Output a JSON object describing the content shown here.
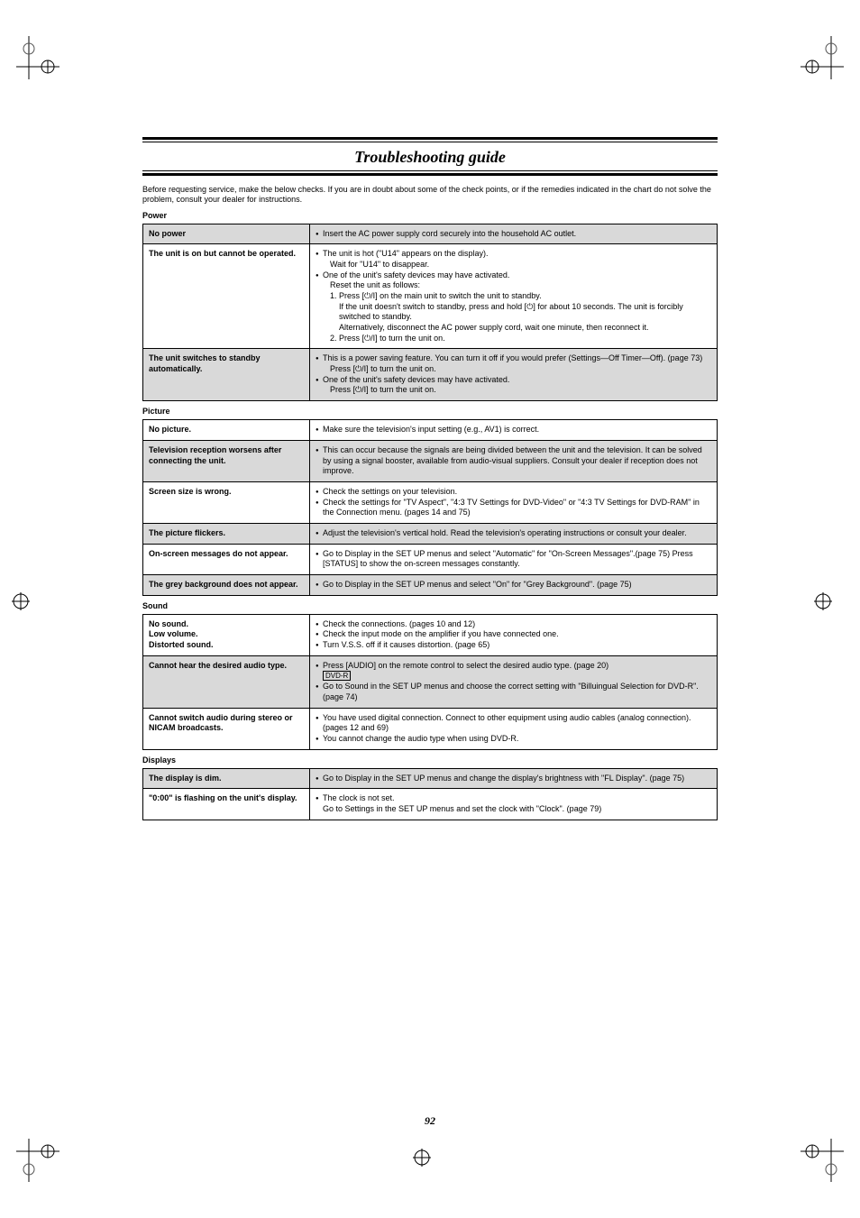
{
  "page": {
    "title": "Troubleshooting guide",
    "intro": "Before requesting service, make the below checks. If you are in doubt about some of the check points, or if the remedies indicated in the chart do not solve the problem, consult your dealer for instructions.",
    "page_number": "92"
  },
  "power_sym": "⏻",
  "sections": [
    {
      "label": "Power",
      "rows": [
        {
          "shaded": true,
          "issue": "No power",
          "remedies_html": "<ul class='bullets'><li>Insert the AC power supply cord securely into the household AC outlet.</li></ul>"
        },
        {
          "shaded": false,
          "issue": "The unit is on but cannot be operated.",
          "remedies_html": "<ul class='bullets'><li>The unit is hot (\"U14\" appears on the display).<span class='sub'>Wait for \"U14\" to disappear.</span></li><li>One of the unit's safety devices may have activated.<span class='sub'>Reset the unit as follows:</span><span class='numstep'>1. Press [<span class='pwr'>⏻</span>/I] on the main unit to switch the unit to standby.</span><span class='sub2'>If the unit doesn't switch to standby, press and hold [<span class='pwr'>⏻</span>] for about 10 seconds. The unit is forcibly switched to standby.</span><span class='sub2'>Alternatively, disconnect the AC power supply cord, wait one minute, then reconnect it.</span><span class='numstep'>2. Press [<span class='pwr'>⏻</span>/I] to turn the unit on.</span></li></ul>"
        },
        {
          "shaded": true,
          "issue": "The unit switches to standby automatically.",
          "remedies_html": "<ul class='bullets'><li>This is a power saving feature. You can turn it off if you would prefer (Settings—Off Timer—Off). (page 73)<span class='sub'>Press [<span class='pwr'>⏻</span>/I] to turn the unit on.</span></li><li>One of the unit's safety devices may have activated.<span class='sub'>Press [<span class='pwr'>⏻</span>/I] to turn the unit on.</span></li></ul>"
        }
      ]
    },
    {
      "label": "Picture",
      "rows": [
        {
          "shaded": false,
          "issue": "No picture.",
          "remedies_html": "<ul class='bullets'><li>Make sure the television's input setting (e.g., AV1) is correct.</li></ul>"
        },
        {
          "shaded": true,
          "issue": "Television reception worsens after connecting the unit.",
          "remedies_html": "<ul class='bullets'><li>This can occur because the signals are being divided between the unit and the television. It can be solved by using a signal booster, available from audio-visual suppliers. Consult your dealer if reception does not improve.</li></ul>"
        },
        {
          "shaded": false,
          "issue": "Screen size is wrong.",
          "remedies_html": "<ul class='bullets'><li>Check the settings on your television.</li><li>Check the settings for \"TV Aspect\", \"4:3 TV Settings for DVD-Video\" or \"4:3 TV Settings for DVD-RAM\" in the Connection menu.  (pages 14 and 75)</li></ul>"
        },
        {
          "shaded": true,
          "issue": "The picture flickers.",
          "remedies_html": "<ul class='bullets'><li>Adjust the television's vertical hold. Read the television's operating instructions or consult your dealer.</li></ul>"
        },
        {
          "shaded": false,
          "issue": "On-screen messages do not appear.",
          "remedies_html": "<ul class='bullets'><li>Go to Display in the SET UP menus and select \"Automatic\" for \"On-Screen Messages\".(page 75) Press [STATUS] to show the on-screen messages constantly.</li></ul>"
        },
        {
          "shaded": true,
          "issue": "The grey background does not appear.",
          "remedies_html": "<ul class='bullets'><li>Go to Display in the SET UP menus and select \"On\" for \"Grey Background\". (page 75)</li></ul>"
        }
      ]
    },
    {
      "label": "Sound",
      "rows": [
        {
          "shaded": false,
          "issue": "No sound.\nLow volume.\nDistorted sound.",
          "remedies_html": "<ul class='bullets'><li>Check the connections. (pages 10 and 12)</li><li>Check the input mode on the amplifier if you have connected one.</li><li>Turn V.S.S. off if it causes distortion. (page 65)</li></ul>"
        },
        {
          "shaded": true,
          "issue": "Cannot hear the desired audio type.",
          "remedies_html": "<ul class='bullets'><li>Press [AUDIO] on the remote control to select the desired audio type. (page 20)<br><span class='box'>DVD-R</span></li><li>Go to Sound in the SET UP menus and choose the correct setting with \"Billuingual Selection for DVD-R\". (page 74)</li></ul>"
        },
        {
          "shaded": false,
          "issue": "Cannot switch audio during stereo or NICAM broadcasts.",
          "remedies_html": "<ul class='bullets'><li>You have used digital connection. Connect to other equipment using audio cables (analog connection). (pages 12 and 69)</li><li>You cannot change the audio type when using DVD-R.</li></ul>"
        }
      ]
    },
    {
      "label": "Displays",
      "rows": [
        {
          "shaded": true,
          "issue": "The display is dim.",
          "remedies_html": "<ul class='bullets'><li>Go to Display in the SET UP menus and change the display's brightness with \"FL Display\". (page 75)</li></ul>"
        },
        {
          "shaded": false,
          "issue": "\"0:00\" is flashing on the unit's display.",
          "remedies_html": "<ul class='bullets'><li>The clock is not set.<br>Go to Settings in the SET UP menus and set the clock with \"Clock\". (page 79)</li></ul>"
        }
      ]
    }
  ]
}
